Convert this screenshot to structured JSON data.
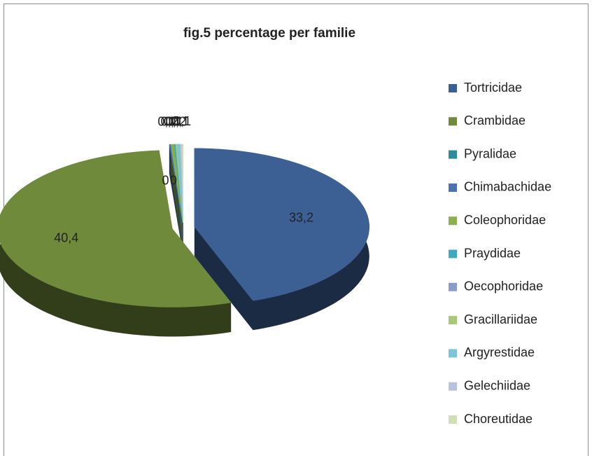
{
  "chart_data": {
    "type": "pie3d",
    "title": "fig.5 percentage per familie",
    "categories": [
      "Tortricidae",
      "Crambidae",
      "Pyralidae",
      "Chimabachidae",
      "Coleophoridae",
      "Praydidae",
      "Oecophoridae",
      "Gracillariidae",
      "Argyrestidae",
      "Gelechiidae",
      "Choreutidae"
    ],
    "values": [
      33.2,
      40.4,
      0,
      0.1,
      0.2,
      0.1,
      0,
      0.1,
      0.2,
      0.1,
      0.1
    ],
    "value_labels": [
      "33,2",
      "40,4",
      "0",
      "0,1",
      "0,2",
      "0,1",
      "0",
      "0,1",
      "0,2",
      "0,1",
      "0,1"
    ],
    "colors": [
      "#3c5f94",
      "#6e8a3a",
      "#2e8b9a",
      "#4a72b0",
      "#8db04f",
      "#3fa9c0",
      "#8a9cc8",
      "#a8c87a",
      "#7cc4d8",
      "#b8c4dc",
      "#cfe0b8"
    ],
    "legend": "right"
  }
}
